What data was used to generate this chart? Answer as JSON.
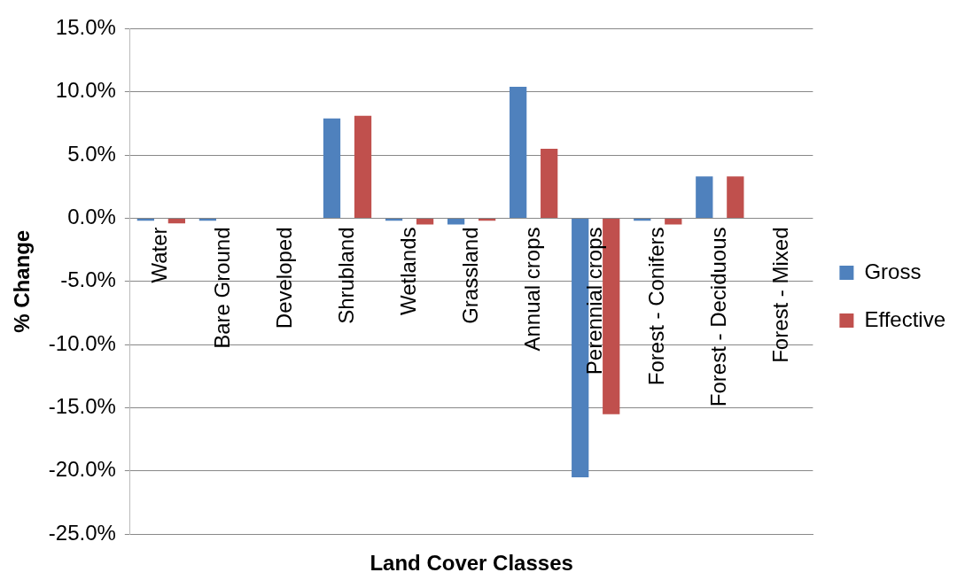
{
  "chart_data": {
    "type": "bar",
    "xlabel": "Land Cover Classes",
    "ylabel": "% Change",
    "categories": [
      "Water",
      "Bare Ground",
      "Developed",
      "Shrubland",
      "Wetlands",
      "Grassland",
      "Annual crops",
      "Perennial crops",
      "Forest - Conifers",
      "Forest - Deciduous",
      "Forest - Mixed"
    ],
    "series": [
      {
        "name": "Gross",
        "color": "#4f81bd",
        "values": [
          -0.2,
          -0.2,
          0,
          7.9,
          -0.2,
          -0.5,
          10.4,
          -20.5,
          -0.2,
          3.3,
          0
        ]
      },
      {
        "name": "Effective",
        "color": "#c0504d",
        "values": [
          -0.4,
          0,
          0,
          8.1,
          -0.5,
          -0.2,
          5.5,
          -15.5,
          -0.5,
          3.3,
          0
        ]
      }
    ],
    "ylim": [
      -25,
      15
    ],
    "yticks": [
      {
        "value": -25,
        "label": "-25.0%"
      },
      {
        "value": -20,
        "label": "-20.0%"
      },
      {
        "value": -15,
        "label": "-15.0%"
      },
      {
        "value": -10,
        "label": "-10.0%"
      },
      {
        "value": -5,
        "label": "-5.0%"
      },
      {
        "value": 0,
        "label": "0.0%"
      },
      {
        "value": 5,
        "label": "5.0%"
      },
      {
        "value": 10,
        "label": "10.0%"
      },
      {
        "value": 15,
        "label": "15.0%"
      }
    ],
    "grid": "y",
    "legend": "right"
  }
}
